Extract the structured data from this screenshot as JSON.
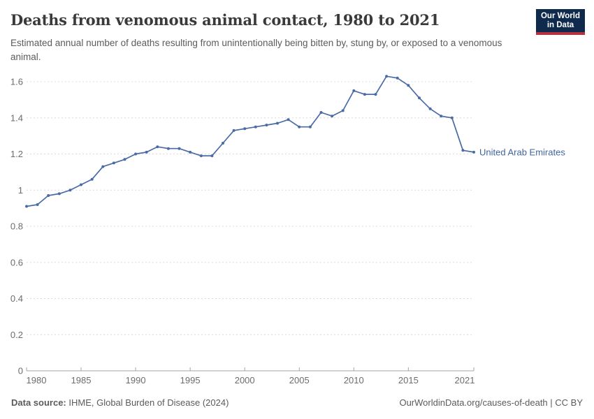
{
  "header": {
    "title": "Deaths from venomous animal contact, 1980 to 2021",
    "subtitle": "Estimated annual number of deaths resulting from unintentionally being bitten by, stung by, or exposed to a venomous animal.",
    "logo": {
      "line1": "Our World",
      "line2": "in Data"
    }
  },
  "chart_data": {
    "type": "line",
    "title": "Deaths from venomous animal contact, 1980 to 2021",
    "x": [
      1980,
      1981,
      1982,
      1983,
      1984,
      1985,
      1986,
      1987,
      1988,
      1989,
      1990,
      1991,
      1992,
      1993,
      1994,
      1995,
      1996,
      1997,
      1998,
      1999,
      2000,
      2001,
      2002,
      2003,
      2004,
      2005,
      2006,
      2007,
      2008,
      2009,
      2010,
      2011,
      2012,
      2013,
      2014,
      2015,
      2016,
      2017,
      2018,
      2019,
      2020,
      2021
    ],
    "series": [
      {
        "name": "United Arab Emirates",
        "values": [
          0.91,
          0.92,
          0.97,
          0.98,
          1.0,
          1.03,
          1.06,
          1.13,
          1.15,
          1.17,
          1.2,
          1.21,
          1.24,
          1.23,
          1.23,
          1.21,
          1.19,
          1.19,
          1.26,
          1.33,
          1.34,
          1.35,
          1.36,
          1.37,
          1.39,
          1.35,
          1.35,
          1.43,
          1.41,
          1.44,
          1.55,
          1.53,
          1.53,
          1.63,
          1.62,
          1.58,
          1.51,
          1.45,
          1.41,
          1.4,
          1.22,
          1.21
        ]
      }
    ],
    "xlim": [
      1980,
      2021
    ],
    "ylim": [
      0,
      1.6
    ],
    "x_tick_labels": [
      "1980",
      "1985",
      "1990",
      "1995",
      "2000",
      "2005",
      "2010",
      "2015",
      "2021"
    ],
    "y_tick_labels": [
      "0",
      "0.2",
      "0.4",
      "0.6",
      "0.8",
      "1",
      "1.2",
      "1.4",
      "1.6"
    ],
    "grid": "horizontal-dashed",
    "legend_position": "end-of-line-label"
  },
  "footer": {
    "datasource_label": "Data source:",
    "datasource_text": " IHME, Global Burden of Disease (2024)",
    "credit": "OurWorldinData.org/causes-of-death | CC BY"
  },
  "colors": {
    "line": "#4A6BA5",
    "entity_label": "#41659F",
    "grid": "#dcdcdc",
    "axis": "#a5a5a5",
    "tick_text": "#6c6c6c",
    "logo_bg": "#102A4D",
    "logo_red": "#B5333F"
  }
}
